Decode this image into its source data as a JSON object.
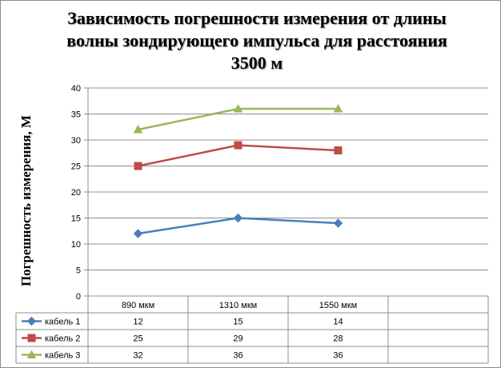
{
  "chart_data": {
    "type": "line",
    "title": "Зависимость погрешности измерения от длины волны зондирующего импульса для расстояния 3500 м",
    "ylabel": "Погрешность измерения,  М",
    "xlabel": "",
    "categories": [
      "890 мкм",
      "1310 мкм",
      "1550 мкм"
    ],
    "ylim": [
      0,
      40
    ],
    "yticks": [
      0,
      5,
      10,
      15,
      20,
      25,
      30,
      35,
      40
    ],
    "grid": true,
    "legend": "data-table",
    "series": [
      {
        "name": "кабель 1",
        "values": [
          12,
          15,
          14
        ],
        "color": "#4a7ebb",
        "marker": "diamond"
      },
      {
        "name": "кабель 2",
        "values": [
          25,
          29,
          28
        ],
        "color": "#be4b48",
        "marker": "square"
      },
      {
        "name": "кабель 3",
        "values": [
          32,
          36,
          36
        ],
        "color": "#98b954",
        "marker": "triangle"
      }
    ]
  }
}
